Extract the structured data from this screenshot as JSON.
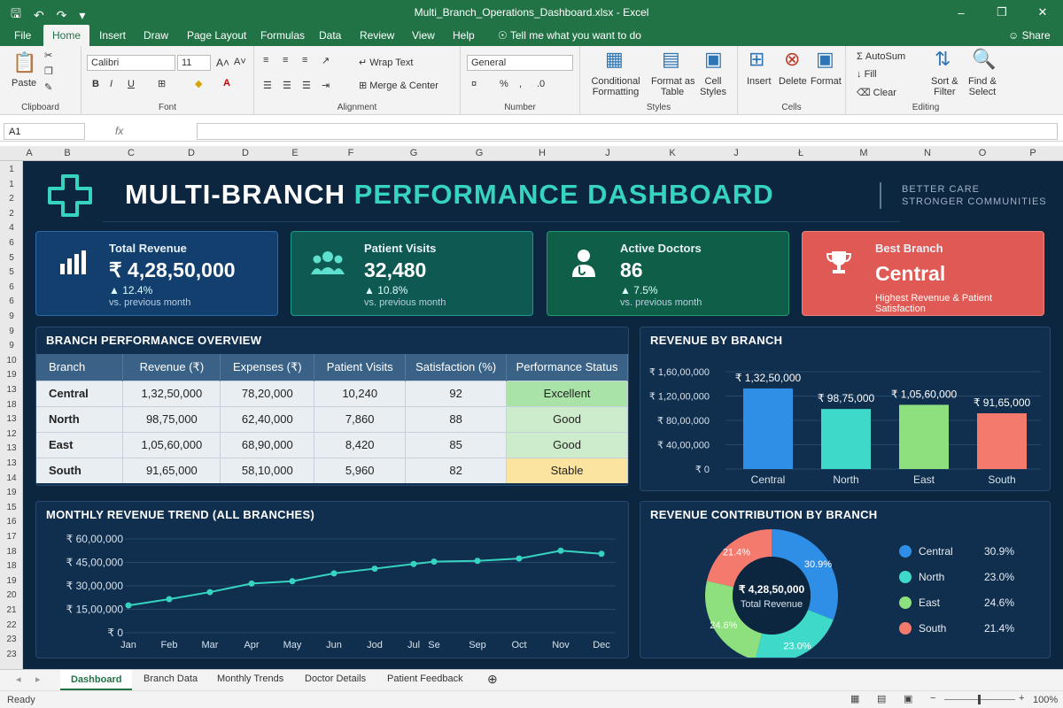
{
  "window": {
    "filename": "Multi_Branch_Operations_Dashboard.xlsx",
    "sep": " - ",
    "app": "Excel"
  },
  "menu": {
    "tabs": [
      "File",
      "Home",
      "Insert",
      "Draw",
      "Page Layout",
      "Formulas",
      "Data",
      "Review",
      "View",
      "Help"
    ],
    "tell_me": "Tell me what you want to do",
    "share": "Share"
  },
  "ribbon": {
    "clipboard": {
      "paste": "Paste",
      "label": "Clipboard"
    },
    "font": {
      "name": "Calibri",
      "size": "11",
      "label": "Font"
    },
    "alignment": {
      "wrap": "Wrap Text",
      "merge": "Merge & Center",
      "label": "Alignment"
    },
    "number": {
      "format": "General",
      "label": "Number"
    },
    "styles": {
      "cond1": "Conditional",
      "cond2": "Formatting",
      "fmt1": "Format as",
      "fmt2": "Table",
      "cell1": "Cell",
      "cell2": "Styles",
      "label": "Styles"
    },
    "cells": {
      "insert": "Insert",
      "delete": "Delete",
      "format": "Format",
      "label": "Cells"
    },
    "editing": {
      "autosum": "AutoSum",
      "fill": "Fill",
      "clear": "Clear",
      "sort1": "Sort &",
      "sort2": "Filter",
      "find1": "Find &",
      "find2": "Select",
      "label": "Editing"
    }
  },
  "formula_bar": {
    "namebox": "A1",
    "fx": "fx"
  },
  "columns": [
    "A",
    "B",
    "C",
    "D",
    "D",
    "E",
    "F",
    "G",
    "G",
    "H",
    "J",
    "K",
    "J",
    "Ł",
    "M",
    "N",
    "O",
    "P"
  ],
  "rows": [
    "1",
    "1",
    "2",
    "2",
    "4",
    "6",
    "5",
    "5",
    "6",
    "6",
    "9",
    "9",
    "9",
    "10",
    "19",
    "13",
    "18",
    "13",
    "12",
    "13",
    "13",
    "14",
    "19",
    "15",
    "16",
    "17",
    "18",
    "18",
    "19",
    "20",
    "21",
    "22",
    "23",
    "23"
  ],
  "dashboard": {
    "title_main": "MULTI-BRANCH ",
    "title_accent": "PERFORMANCE DASHBOARD",
    "tagline1": "BETTER CARE",
    "tagline2": "STRONGER COMMUNITIES",
    "kpis": [
      {
        "label": "Total Revenue",
        "value": "₹ 4,28,50,000",
        "change": "▲ 12.4%",
        "sub": "vs. previous month",
        "icon": "bar-chart-icon",
        "color": "#123f6e"
      },
      {
        "label": "Patient Visits",
        "value": "32,480",
        "change": "▲ 10.8%",
        "sub": "vs. previous month",
        "icon": "people-icon",
        "color": "#0e5a52"
      },
      {
        "label": "Active Doctors",
        "value": "86",
        "change": "▲ 7.5%",
        "sub": "vs. previous month",
        "icon": "doctor-icon",
        "color": "#0f5e48"
      },
      {
        "label": "Best Branch",
        "value": "Central",
        "sub": "Highest Revenue & Patient Satisfaction",
        "icon": "trophy-icon",
        "color": "#e05a55"
      }
    ],
    "overview": {
      "title": "BRANCH PERFORMANCE OVERVIEW",
      "headers": [
        "Branch",
        "Revenue (₹)",
        "Expenses (₹)",
        "Patient Visits",
        "Satisfaction (%)",
        "Performance Status"
      ],
      "rows": [
        [
          "Central",
          "1,32,50,000",
          "78,20,000",
          "10,240",
          "92",
          "Excellent"
        ],
        [
          "North",
          "98,75,000",
          "62,40,000",
          "7,860",
          "88",
          "Good"
        ],
        [
          "East",
          "1,05,60,000",
          "68,90,000",
          "8,420",
          "85",
          "Good"
        ],
        [
          "South",
          "91,65,000",
          "58,10,000",
          "5,960",
          "82",
          "Stable"
        ]
      ]
    }
  },
  "chart_data": [
    {
      "type": "bar",
      "title": "REVENUE BY BRANCH",
      "categories": [
        "Central",
        "North",
        "East",
        "South"
      ],
      "values": [
        13250000,
        9875000,
        10560000,
        9165000
      ],
      "value_labels": [
        "₹ 1,32,50,000",
        "₹ 98,75,000",
        "₹ 1,05,60,000",
        "₹ 91,65,000"
      ],
      "colors": [
        "#2f8fe6",
        "#3fd9c9",
        "#8ee07e",
        "#f47a6e"
      ],
      "ylim": [
        0,
        16000000
      ],
      "yticks": [
        0,
        4000000,
        8000000,
        12000000,
        16000000
      ],
      "ytick_labels": [
        "₹ 0",
        "₹ 40,00,000",
        "₹ 80,00,000",
        "₹ 1,20,00,000",
        "₹ 1,60,00,000"
      ]
    },
    {
      "type": "line",
      "title": "MONTHLY REVENUE TREND (ALL BRANCHES)",
      "x": [
        "Jan",
        "Feb",
        "Mar",
        "Apr",
        "May",
        "Jun",
        "Jod",
        "Jul",
        "Se",
        "Sep",
        "Oct",
        "Nov",
        "Dec"
      ],
      "values": [
        1750000,
        2150000,
        2600000,
        3150000,
        3300000,
        3800000,
        4100000,
        4400000,
        4550000,
        4600000,
        4750000,
        5250000,
        5050000
      ],
      "ylim": [
        0,
        6000000
      ],
      "yticks": [
        0,
        1500000,
        3000000,
        4500000,
        6000000
      ],
      "ytick_labels": [
        "₹ 0",
        "₹ 15,00,000",
        "₹ 30,00,000",
        "₹ 45,00,000",
        "₹ 60,00,000"
      ],
      "color": "#37d3c1"
    },
    {
      "type": "pie",
      "title": "REVENUE CONTRIBUTION BY BRANCH",
      "categories": [
        "Central",
        "North",
        "East",
        "South"
      ],
      "values": [
        30.9,
        23.0,
        24.6,
        21.4
      ],
      "labels": [
        "30.9%",
        "23.0%",
        "24.6%",
        "21.4%"
      ],
      "colors": [
        "#2f8fe6",
        "#3fd9c9",
        "#8ee07e",
        "#f47a6e"
      ],
      "center_value": "₹ 4,28,50,000",
      "center_label": "Total Revenue"
    }
  ],
  "sheets": [
    "Dashboard",
    "Branch Data",
    "Monthly Trends",
    "Doctor Details",
    "Patient Feedback"
  ],
  "status": {
    "ready": "Ready",
    "zoom": "100%"
  }
}
